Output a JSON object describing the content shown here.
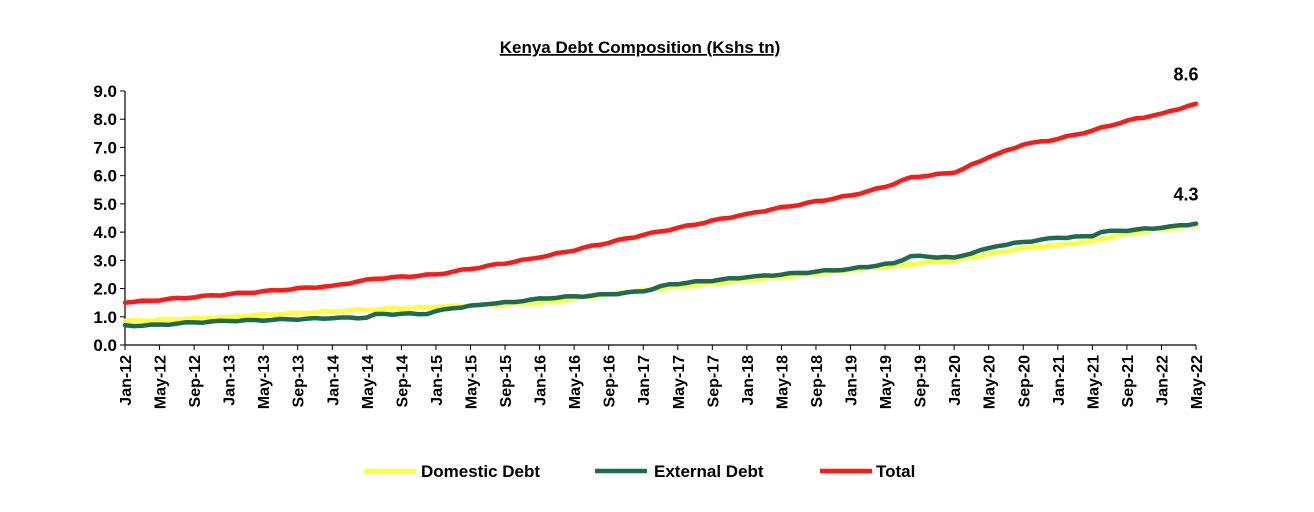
{
  "chart_data": {
    "type": "line",
    "title": "Kenya Debt Composition (Kshs tn)",
    "xlabel": "",
    "ylabel": "",
    "ylim": [
      0,
      9
    ],
    "yticks": [
      "0.0",
      "1.0",
      "2.0",
      "3.0",
      "4.0",
      "5.0",
      "6.0",
      "7.0",
      "8.0",
      "9.0"
    ],
    "x_tick_labels": [
      "Jan-12",
      "May-12",
      "Sep-12",
      "Jan-13",
      "May-13",
      "Sep-13",
      "Jan-14",
      "May-14",
      "Sep-14",
      "Jan-15",
      "May-15",
      "Sep-15",
      "Jan-16",
      "May-16",
      "Sep-16",
      "Jan-17",
      "May-17",
      "Sep-17",
      "Jan-18",
      "May-18",
      "Sep-18",
      "Jan-19",
      "May-19",
      "Sep-19",
      "Jan-20",
      "May-20",
      "Sep-20",
      "Jan-21",
      "May-21",
      "Sep-21",
      "Jan-22",
      "May-22"
    ],
    "grid": false,
    "legend_position": "bottom",
    "series": [
      {
        "name": "Domestic Debt",
        "color": "#ffff3d",
        "anchors": [
          [
            "Jan-12",
            0.85
          ],
          [
            "Jan-13",
            1.0
          ],
          [
            "Jan-14",
            1.2
          ],
          [
            "Jan-15",
            1.35
          ],
          [
            "Jan-16",
            1.5
          ],
          [
            "Jan-17",
            1.95
          ],
          [
            "Jan-18",
            2.3
          ],
          [
            "Jan-19",
            2.65
          ],
          [
            "Sep-19",
            2.9
          ],
          [
            "Jan-20",
            3.0
          ],
          [
            "Sep-20",
            3.45
          ],
          [
            "Jan-21",
            3.55
          ],
          [
            "May-21",
            3.7
          ],
          [
            "Sep-21",
            3.95
          ],
          [
            "Jan-22",
            4.1
          ],
          [
            "May-22",
            4.25
          ]
        ]
      },
      {
        "name": "External Debt",
        "color": "#1e6b52",
        "anchors": [
          [
            "Jan-12",
            0.7
          ],
          [
            "Mar-12",
            0.68
          ],
          [
            "Sep-12",
            0.8
          ],
          [
            "Jan-13",
            0.85
          ],
          [
            "Jan-14",
            0.95
          ],
          [
            "May-14",
            0.97
          ],
          [
            "Jun-14",
            1.1
          ],
          [
            "Dec-14",
            1.1
          ],
          [
            "Jan-15",
            1.2
          ],
          [
            "Mar-15",
            1.3
          ],
          [
            "Jul-15",
            1.45
          ],
          [
            "Nov-15",
            1.55
          ],
          [
            "Jan-16",
            1.65
          ],
          [
            "Jul-16",
            1.75
          ],
          [
            "Jan-17",
            1.9
          ],
          [
            "Apr-17",
            2.15
          ],
          [
            "Jan-18",
            2.4
          ],
          [
            "Jan-19",
            2.7
          ],
          [
            "Jun-19",
            2.9
          ],
          [
            "Aug-19",
            3.15
          ],
          [
            "Jan-20",
            3.1
          ],
          [
            "Jun-20",
            3.5
          ],
          [
            "Sep-20",
            3.65
          ],
          [
            "Jan-21",
            3.8
          ],
          [
            "May-21",
            3.85
          ],
          [
            "Jun-21",
            4.0
          ],
          [
            "Jan-22",
            4.15
          ],
          [
            "May-22",
            4.3
          ]
        ]
      },
      {
        "name": "Total",
        "color": "#ff1a1a",
        "anchors": [
          [
            "Jan-12",
            1.5
          ],
          [
            "Jan-13",
            1.8
          ],
          [
            "Jan-14",
            2.1
          ],
          [
            "Jun-14",
            2.35
          ],
          [
            "Jan-15",
            2.5
          ],
          [
            "Jan-16",
            3.1
          ],
          [
            "Jan-17",
            3.9
          ],
          [
            "Jan-18",
            4.65
          ],
          [
            "Jan-19",
            5.3
          ],
          [
            "May-19",
            5.6
          ],
          [
            "Aug-19",
            5.95
          ],
          [
            "Jan-20",
            6.1
          ],
          [
            "May-20",
            6.65
          ],
          [
            "Sep-20",
            7.1
          ],
          [
            "Jan-21",
            7.3
          ],
          [
            "May-21",
            7.6
          ],
          [
            "Sep-21",
            7.95
          ],
          [
            "Jan-22",
            8.2
          ],
          [
            "May-22",
            8.55
          ]
        ]
      }
    ],
    "annotations": [
      {
        "text": "8.6",
        "series": "Total"
      },
      {
        "text": "4.3",
        "series": "External Debt"
      }
    ]
  }
}
